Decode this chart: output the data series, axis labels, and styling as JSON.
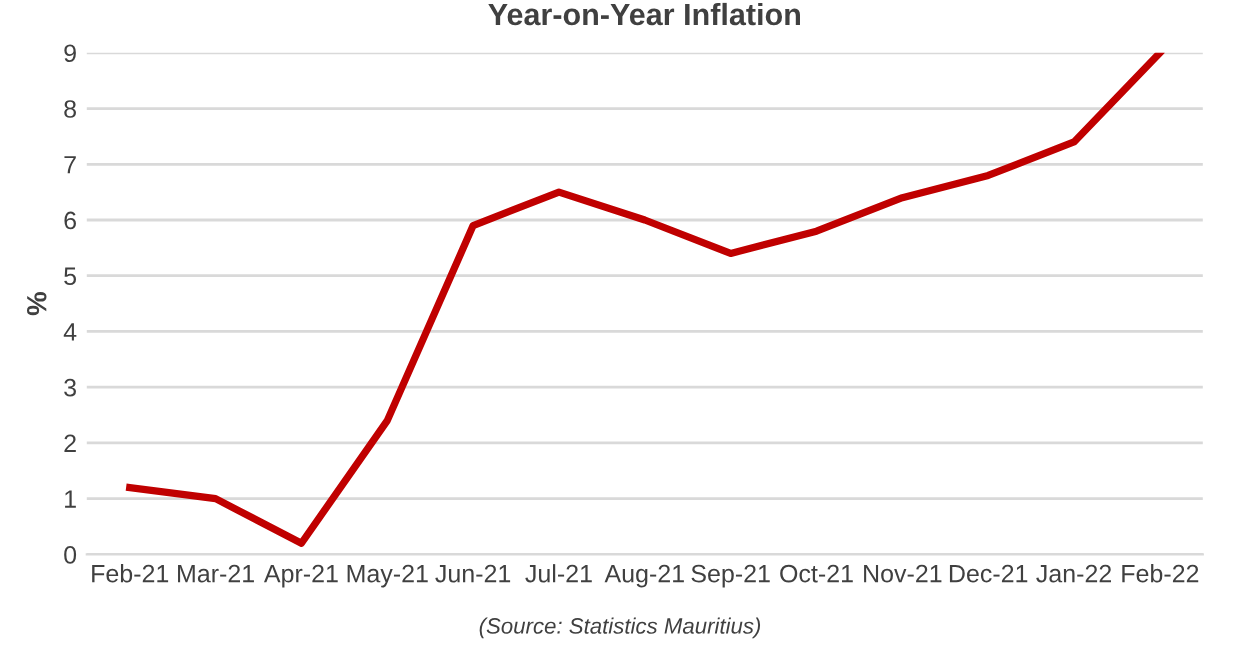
{
  "chart_data": {
    "type": "line",
    "title": "Year-on-Year Inflation",
    "ylabel": "%",
    "categories": [
      "Feb-21",
      "Mar-21",
      "Apr-21",
      "May-21",
      "Jun-21",
      "Jul-21",
      "Aug-21",
      "Sep-21",
      "Oct-21",
      "Nov-21",
      "Dec-21",
      "Jan-22",
      "Feb-22"
    ],
    "series": [
      {
        "color": "#c00000",
        "values": [
          1.2,
          1.0,
          0.2,
          2.4,
          5.9,
          6.5,
          6.0,
          5.4,
          5.8,
          6.4,
          6.8,
          7.4,
          9.0
        ]
      }
    ],
    "ylim": [
      0,
      9
    ],
    "yticks": [
      0,
      1,
      2,
      3,
      4,
      5,
      6,
      7,
      8,
      9
    ],
    "grid": "y",
    "legend": false,
    "marker": "none",
    "line_style": "solid",
    "annotations": [
      "(Source: Statistics Mauritius)"
    ]
  }
}
